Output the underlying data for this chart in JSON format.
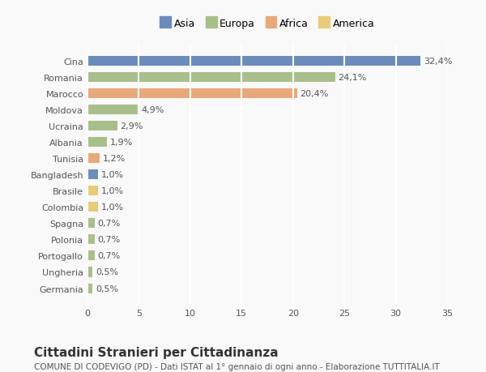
{
  "countries": [
    "Cina",
    "Romania",
    "Marocco",
    "Moldova",
    "Ucraina",
    "Albania",
    "Tunisia",
    "Bangladesh",
    "Brasile",
    "Colombia",
    "Spagna",
    "Polonia",
    "Portogallo",
    "Ungheria",
    "Germania"
  ],
  "values": [
    32.4,
    24.1,
    20.4,
    4.9,
    2.9,
    1.9,
    1.2,
    1.0,
    1.0,
    1.0,
    0.7,
    0.7,
    0.7,
    0.5,
    0.5
  ],
  "labels": [
    "32,4%",
    "24,1%",
    "20,4%",
    "4,9%",
    "2,9%",
    "1,9%",
    "1,2%",
    "1,0%",
    "1,0%",
    "1,0%",
    "0,7%",
    "0,7%",
    "0,7%",
    "0,5%",
    "0,5%"
  ],
  "continents": [
    "Asia",
    "Europa",
    "Africa",
    "Europa",
    "Europa",
    "Europa",
    "Africa",
    "Asia",
    "America",
    "America",
    "Europa",
    "Europa",
    "Europa",
    "Europa",
    "Europa"
  ],
  "colors": {
    "Asia": "#6b8cba",
    "Europa": "#a8bf8a",
    "Africa": "#e8a97a",
    "America": "#e8cc7a"
  },
  "legend_items": [
    "Asia",
    "Europa",
    "Africa",
    "America"
  ],
  "legend_colors": [
    "#6b8cba",
    "#a8bf8a",
    "#e8a97a",
    "#e8cc7a"
  ],
  "title": "Cittadini Stranieri per Cittadinanza",
  "subtitle": "COMUNE DI CODEVIGO (PD) - Dati ISTAT al 1° gennaio di ogni anno - Elaborazione TUTTITALIA.IT",
  "xlim": [
    0,
    35
  ],
  "xticks": [
    0,
    5,
    10,
    15,
    20,
    25,
    30,
    35
  ],
  "background_color": "#f9f9f9",
  "grid_color": "#ffffff",
  "bar_height": 0.6,
  "label_fontsize": 8,
  "tick_fontsize": 8,
  "title_fontsize": 11,
  "subtitle_fontsize": 7.5
}
